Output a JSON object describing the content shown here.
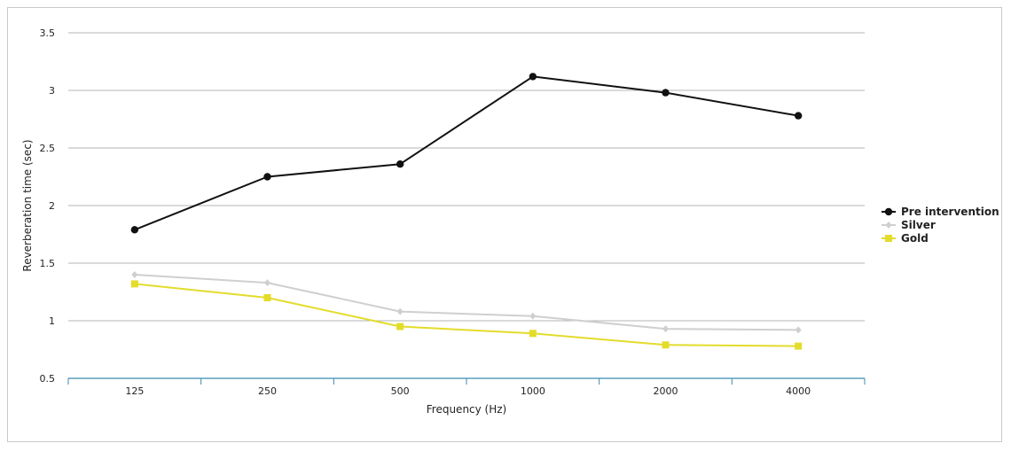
{
  "chart_data": {
    "type": "line",
    "title": "",
    "xlabel": "Frequency (Hz)",
    "ylabel": "Reverberation time (sec)",
    "categories": [
      "125",
      "250",
      "500",
      "1000",
      "2000",
      "4000"
    ],
    "ylim": [
      0.5,
      3.5
    ],
    "yticks": [
      "0.5",
      "1",
      "1.5",
      "2",
      "2.5",
      "3",
      "3.5"
    ],
    "grid": true,
    "legend_position": "right",
    "series": [
      {
        "name": "Pre intervention",
        "values": [
          1.79,
          2.25,
          2.36,
          3.12,
          2.98,
          2.78
        ],
        "color": "#111111",
        "marker": "circle"
      },
      {
        "name": "Silver",
        "values": [
          1.4,
          1.33,
          1.08,
          1.04,
          0.93,
          0.92
        ],
        "color": "#cfcfcf",
        "marker": "diamond"
      },
      {
        "name": "Gold",
        "values": [
          1.32,
          1.2,
          0.95,
          0.89,
          0.79,
          0.78
        ],
        "color": "#e3dc2b",
        "marker": "square"
      }
    ]
  }
}
